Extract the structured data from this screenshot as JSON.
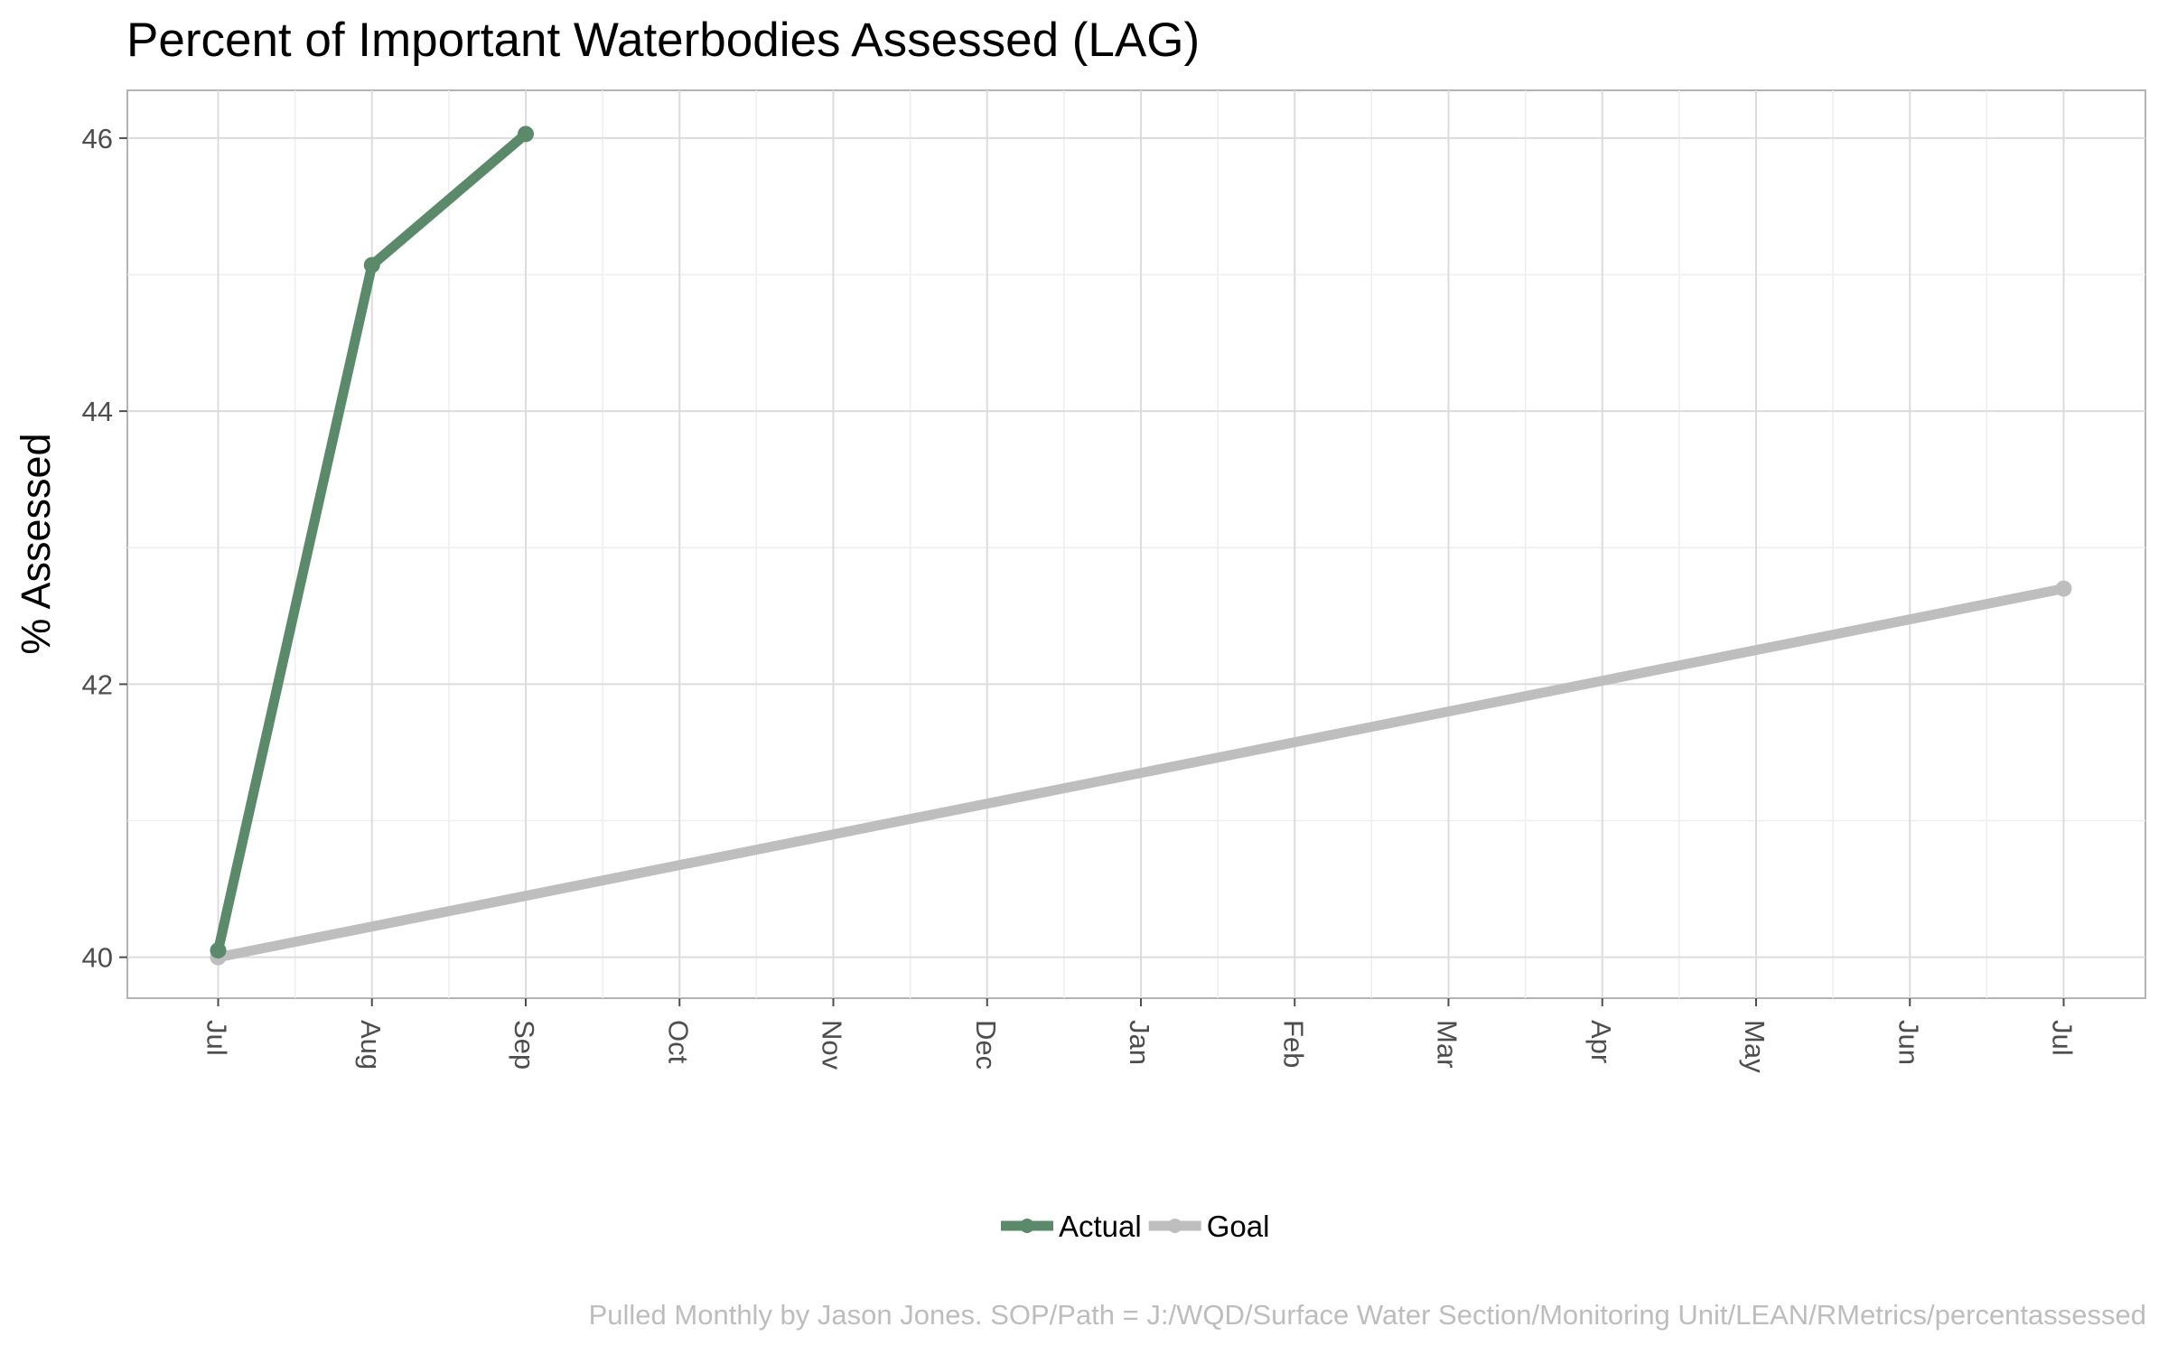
{
  "chart_data": {
    "type": "line",
    "title": "Percent of Important Waterbodies Assessed (LAG)",
    "xlabel": "",
    "ylabel": "% Assessed",
    "x_tick_labels": [
      "Jul",
      "Aug",
      "Sep",
      "Oct",
      "Nov",
      "Dec",
      "Jan",
      "Feb",
      "Mar",
      "Apr",
      "May",
      "Jun",
      "Jul"
    ],
    "ylim": [
      39.7,
      46.35
    ],
    "y_ticks": [
      40,
      42,
      44,
      46
    ],
    "grid": true,
    "legend_position": "bottom",
    "caption": "Pulled Monthly by Jason Jones. SOP/Path = J:/WQD/Surface Water Section/Monitoring Unit/LEAN/RMetrics/percentassessed",
    "series": [
      {
        "name": "Actual",
        "color": "#5b8a6b",
        "points": [
          {
            "x": "Jul",
            "y": 40.05
          },
          {
            "x": "Aug",
            "y": 45.07
          },
          {
            "x": "Sep",
            "y": 46.03
          }
        ]
      },
      {
        "name": "Goal",
        "color": "#bebebe",
        "points": [
          {
            "x": "Jul",
            "y": 40.0
          },
          {
            "x": "Jul",
            "y": 42.7
          }
        ]
      }
    ]
  }
}
